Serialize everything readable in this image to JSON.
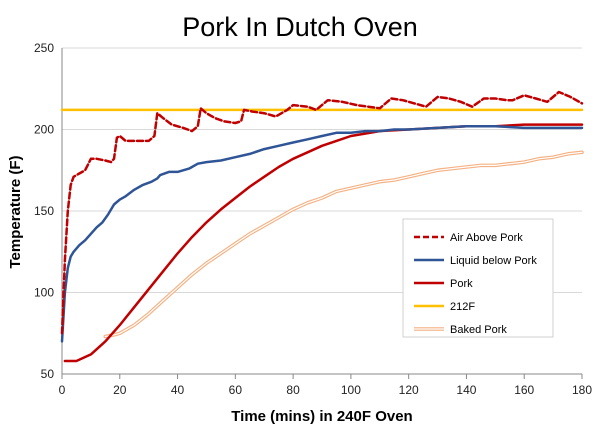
{
  "chart_data": {
    "type": "line",
    "title": "Pork In Dutch Oven",
    "xlabel": "Time (mins) in 240F Oven",
    "ylabel": "Temperature (F)",
    "xlim": [
      0,
      180
    ],
    "ylim": [
      50,
      250
    ],
    "xticks": [
      0,
      20,
      40,
      60,
      80,
      100,
      120,
      140,
      160,
      180
    ],
    "yticks": [
      50,
      100,
      150,
      200,
      250
    ],
    "grid": "horizontal",
    "legend_position": "lower-right",
    "series": [
      {
        "name": "Air Above Pork",
        "color": "#c00000",
        "style": "dashed",
        "points": [
          [
            0,
            75
          ],
          [
            1,
            120
          ],
          [
            2,
            150
          ],
          [
            3,
            166
          ],
          [
            4,
            171
          ],
          [
            6,
            173
          ],
          [
            8,
            175
          ],
          [
            10,
            182
          ],
          [
            12,
            182
          ],
          [
            15,
            181
          ],
          [
            17,
            180
          ],
          [
            18,
            182
          ],
          [
            19,
            195
          ],
          [
            20,
            196
          ],
          [
            22,
            193
          ],
          [
            25,
            193
          ],
          [
            30,
            193
          ],
          [
            32,
            196
          ],
          [
            33,
            210
          ],
          [
            35,
            207
          ],
          [
            38,
            203
          ],
          [
            42,
            201
          ],
          [
            45,
            199
          ],
          [
            47,
            202
          ],
          [
            48,
            213
          ],
          [
            50,
            210
          ],
          [
            53,
            207
          ],
          [
            56,
            205
          ],
          [
            60,
            204
          ],
          [
            62,
            205
          ],
          [
            63,
            212
          ],
          [
            66,
            211
          ],
          [
            70,
            210
          ],
          [
            74,
            208
          ],
          [
            78,
            212
          ],
          [
            80,
            215
          ],
          [
            85,
            214
          ],
          [
            88,
            212
          ],
          [
            92,
            218
          ],
          [
            97,
            217
          ],
          [
            102,
            215
          ],
          [
            106,
            214
          ],
          [
            110,
            213
          ],
          [
            114,
            219
          ],
          [
            118,
            218
          ],
          [
            122,
            216
          ],
          [
            126,
            214
          ],
          [
            130,
            220
          ],
          [
            134,
            219
          ],
          [
            138,
            217
          ],
          [
            142,
            214
          ],
          [
            146,
            219
          ],
          [
            150,
            219
          ],
          [
            154,
            218
          ],
          [
            156,
            218
          ],
          [
            160,
            221
          ],
          [
            164,
            219
          ],
          [
            168,
            217
          ],
          [
            172,
            223
          ],
          [
            176,
            220
          ],
          [
            180,
            216
          ]
        ]
      },
      {
        "name": "Liquid below Pork",
        "color": "#2f5597",
        "style": "solid",
        "points": [
          [
            0,
            70
          ],
          [
            1,
            100
          ],
          [
            2,
            115
          ],
          [
            3,
            122
          ],
          [
            4,
            125
          ],
          [
            6,
            129
          ],
          [
            8,
            132
          ],
          [
            10,
            136
          ],
          [
            12,
            140
          ],
          [
            14,
            143
          ],
          [
            16,
            148
          ],
          [
            18,
            154
          ],
          [
            20,
            157
          ],
          [
            22,
            159
          ],
          [
            25,
            163
          ],
          [
            28,
            166
          ],
          [
            31,
            168
          ],
          [
            33,
            170
          ],
          [
            34,
            172
          ],
          [
            37,
            174
          ],
          [
            40,
            174
          ],
          [
            44,
            176
          ],
          [
            47,
            179
          ],
          [
            50,
            180
          ],
          [
            55,
            181
          ],
          [
            60,
            183
          ],
          [
            65,
            185
          ],
          [
            70,
            188
          ],
          [
            75,
            190
          ],
          [
            80,
            192
          ],
          [
            85,
            194
          ],
          [
            90,
            196
          ],
          [
            95,
            198
          ],
          [
            100,
            198
          ],
          [
            105,
            199
          ],
          [
            110,
            199
          ],
          [
            115,
            200
          ],
          [
            120,
            200
          ],
          [
            130,
            201
          ],
          [
            140,
            202
          ],
          [
            150,
            202
          ],
          [
            160,
            201
          ],
          [
            170,
            201
          ],
          [
            180,
            201
          ]
        ]
      },
      {
        "name": "Pork",
        "color": "#c00000",
        "style": "solid",
        "points": [
          [
            1,
            58
          ],
          [
            5,
            58
          ],
          [
            10,
            62
          ],
          [
            15,
            70
          ],
          [
            20,
            80
          ],
          [
            25,
            91
          ],
          [
            30,
            102
          ],
          [
            35,
            113
          ],
          [
            40,
            124
          ],
          [
            45,
            134
          ],
          [
            50,
            143
          ],
          [
            55,
            151
          ],
          [
            60,
            158
          ],
          [
            65,
            165
          ],
          [
            70,
            171
          ],
          [
            75,
            177
          ],
          [
            80,
            182
          ],
          [
            85,
            186
          ],
          [
            90,
            190
          ],
          [
            95,
            193
          ],
          [
            100,
            196
          ],
          [
            110,
            199
          ],
          [
            120,
            200
          ],
          [
            130,
            201
          ],
          [
            140,
            202
          ],
          [
            150,
            202
          ],
          [
            160,
            203
          ],
          [
            170,
            203
          ],
          [
            180,
            203
          ]
        ]
      },
      {
        "name": "212F",
        "color": "#ffc000",
        "style": "solid",
        "points": [
          [
            0,
            212
          ],
          [
            180,
            212
          ]
        ]
      },
      {
        "name": "Baked Pork",
        "color": "#f4b183",
        "style": "double",
        "points": [
          [
            15,
            73
          ],
          [
            18,
            74
          ],
          [
            20,
            75
          ],
          [
            25,
            80
          ],
          [
            30,
            87
          ],
          [
            35,
            95
          ],
          [
            40,
            103
          ],
          [
            45,
            111
          ],
          [
            50,
            118
          ],
          [
            55,
            124
          ],
          [
            60,
            130
          ],
          [
            65,
            136
          ],
          [
            70,
            141
          ],
          [
            75,
            146
          ],
          [
            80,
            151
          ],
          [
            85,
            155
          ],
          [
            90,
            158
          ],
          [
            95,
            162
          ],
          [
            100,
            164
          ],
          [
            105,
            166
          ],
          [
            110,
            168
          ],
          [
            115,
            169
          ],
          [
            120,
            171
          ],
          [
            125,
            173
          ],
          [
            130,
            175
          ],
          [
            135,
            176
          ],
          [
            140,
            177
          ],
          [
            145,
            178
          ],
          [
            150,
            178
          ],
          [
            155,
            179
          ],
          [
            160,
            180
          ],
          [
            165,
            182
          ],
          [
            170,
            183
          ],
          [
            175,
            185
          ],
          [
            180,
            186
          ]
        ]
      }
    ]
  }
}
